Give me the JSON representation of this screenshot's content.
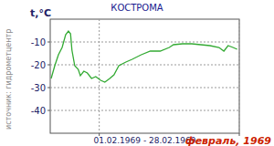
{
  "chart_data": {
    "type": "line",
    "title": "КОСТРОМА",
    "y_label": "t,°C",
    "x_label": "01.02.1969 - 28.02.1969",
    "annotations": [
      "источник: гидрометцентр",
      "февраль, 1969"
    ],
    "x": [
      1.13,
      1.65,
      2.17,
      2.7,
      3.2,
      3.6,
      3.9,
      4.1,
      4.5,
      5.0,
      5.3,
      5.8,
      6.3,
      6.9,
      7.5,
      8.2,
      8.8,
      9.5,
      10.1,
      10.8,
      11.8,
      12.7,
      14.0,
      15.3,
      16.7,
      18.0,
      18.6,
      19.9,
      21.2,
      22.5,
      23.8,
      25.1,
      25.8,
      26.4,
      27.1,
      27.7
    ],
    "series": [
      {
        "name": "t",
        "color": "#33aa33",
        "values": [
          -26,
          -20.4,
          -15.6,
          -12.4,
          -6.8,
          -5.2,
          -6.4,
          -13.6,
          -20.4,
          -22,
          -24.8,
          -22.8,
          -23.6,
          -26,
          -25.2,
          -26.8,
          -27.6,
          -26,
          -24.4,
          -20.4,
          -18.8,
          -17.6,
          -15.6,
          -14,
          -14,
          -12.4,
          -11.2,
          -10.8,
          -10.8,
          -11.2,
          -11.6,
          -12.4,
          -14,
          -11.6,
          -12.4,
          -13.2
        ]
      }
    ],
    "xlim": [
      1,
      28
    ],
    "xticks": [
      8,
      28
    ],
    "ylim": [
      -50,
      0
    ],
    "yticks": [
      -10,
      -20,
      -30,
      -40
    ],
    "grid": true,
    "tick_labels": "y"
  }
}
